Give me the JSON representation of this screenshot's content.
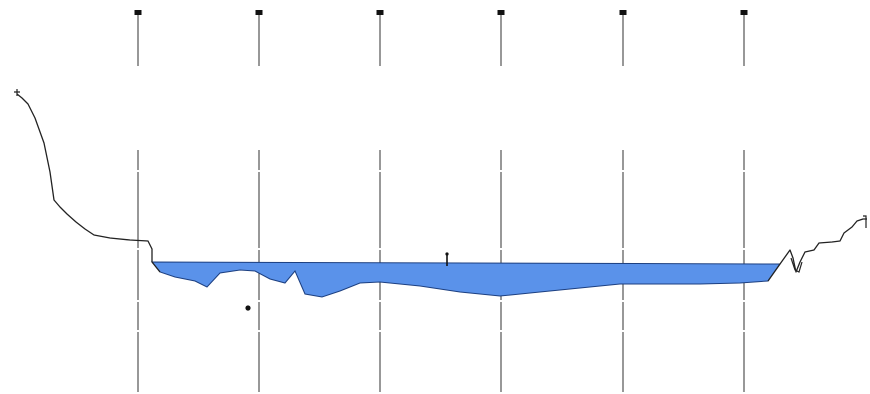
{
  "colors": {
    "background": "#ffffff",
    "water_fill": "#5a92ea",
    "water_outline": "#1c3f80",
    "terrain_line": "#222222",
    "station_line": "#444444",
    "station_marker": "#111111"
  },
  "diagram": {
    "type": "river-cross-section",
    "station_count": 6,
    "station_labels": [
      "",
      "",
      "",
      "",
      "",
      ""
    ],
    "features": {
      "terrain_profile": "river-bank-and-bed-profile",
      "water_body": "river-water-cross-section",
      "water_level_marker": "water-level-marker",
      "sounding_point": "sounding-point"
    }
  }
}
